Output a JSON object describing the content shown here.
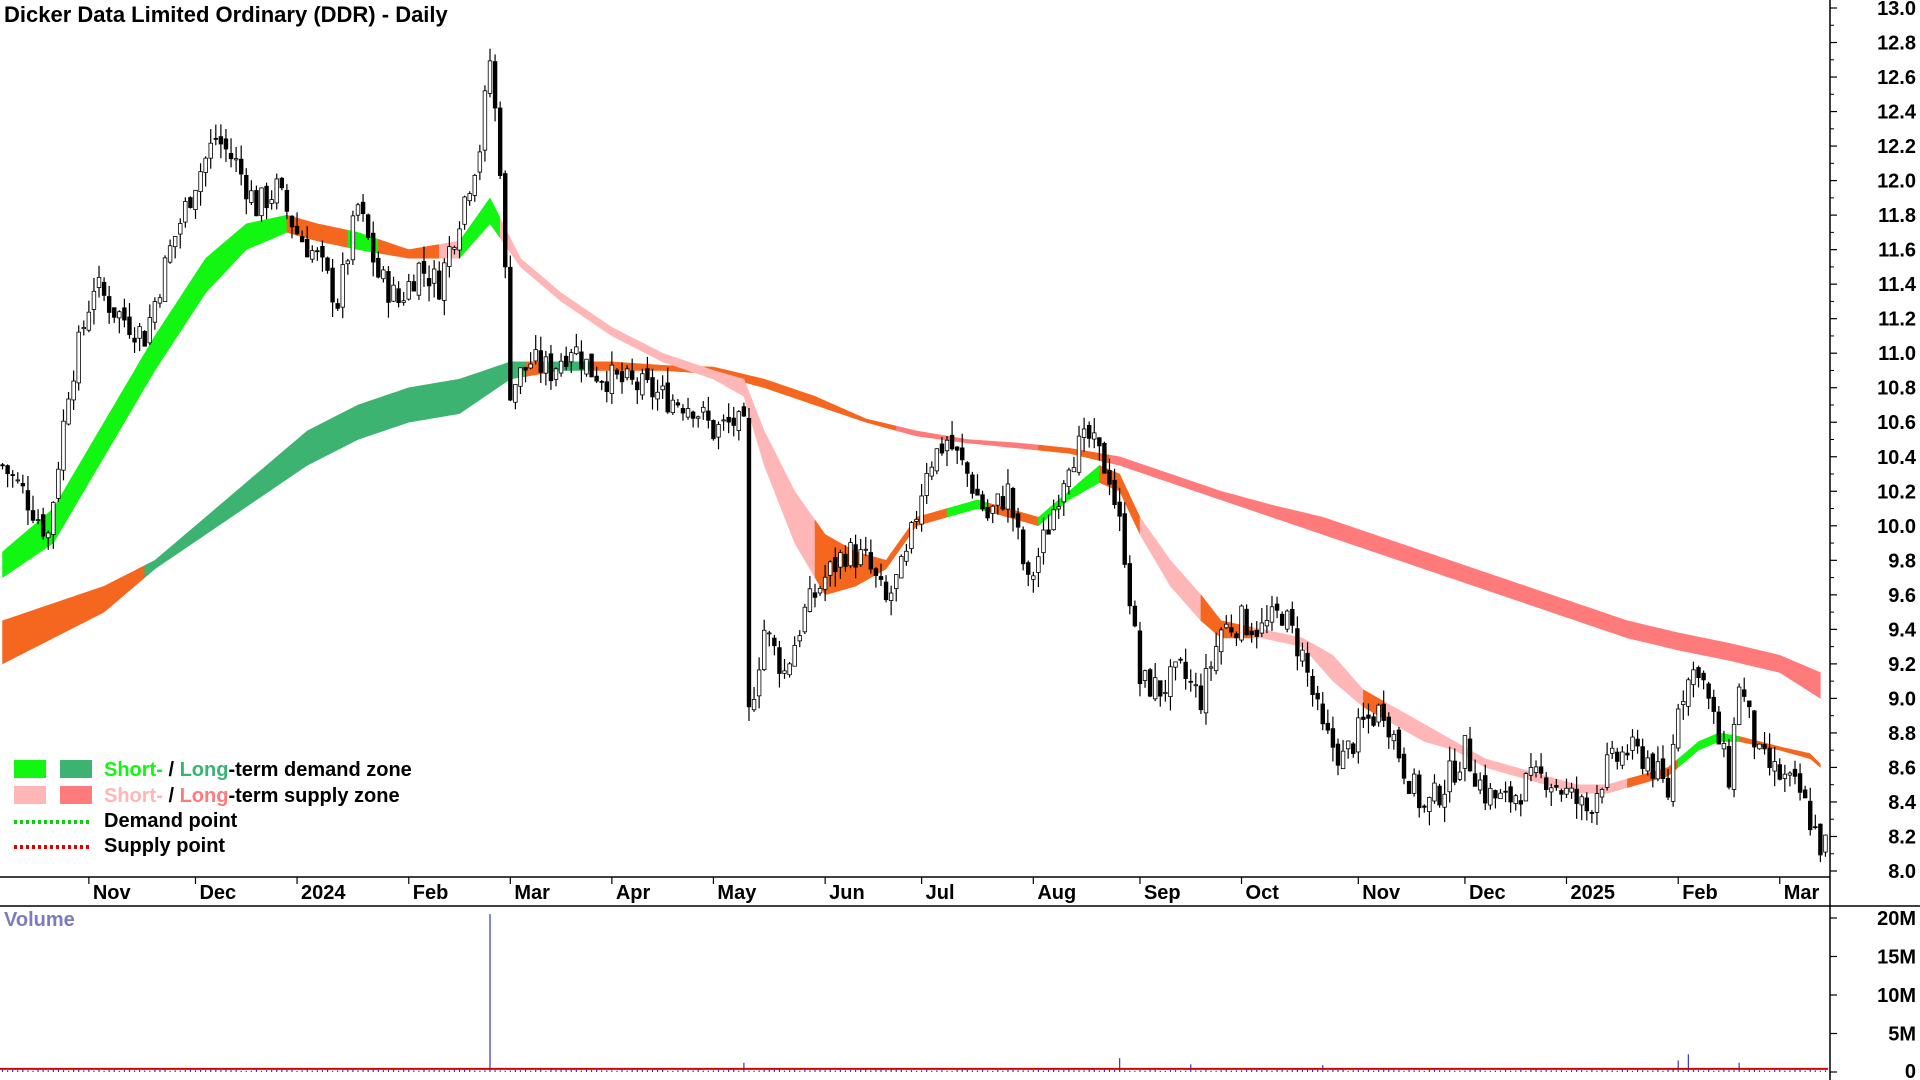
{
  "chart_data": [
    {
      "type": "candlestick",
      "title": "Dicker Data Limited Ordinary (DDR) - Daily",
      "ylim": [
        8.0,
        13.0
      ],
      "yticks": [
        "13.0",
        "12.8",
        "12.6",
        "12.4",
        "12.2",
        "12.0",
        "11.8",
        "11.6",
        "11.4",
        "11.2",
        "11.0",
        "10.8",
        "10.6",
        "10.4",
        "10.2",
        "10.0",
        "9.8",
        "9.6",
        "9.4",
        "9.2",
        "9.0",
        "8.8",
        "8.6",
        "8.4",
        "8.2",
        "8.0"
      ],
      "xticks": [
        "Nov",
        "Dec",
        "2024",
        "Feb",
        "Mar",
        "Apr",
        "May",
        "Jun",
        "Jul",
        "Aug",
        "Sep",
        "Oct",
        "Nov",
        "Dec",
        "2025",
        "Feb",
        "Mar"
      ],
      "xtick_index": [
        17,
        38,
        58,
        80,
        100,
        120,
        140,
        162,
        181,
        203,
        224,
        244,
        267,
        288,
        308,
        330,
        350
      ],
      "n_days": 360,
      "close_anchors": [
        [
          0,
          10.35
        ],
        [
          4,
          10.2
        ],
        [
          9,
          9.95
        ],
        [
          13,
          10.8
        ],
        [
          18,
          11.4
        ],
        [
          22,
          11.25
        ],
        [
          28,
          11.1
        ],
        [
          33,
          11.6
        ],
        [
          38,
          12.0
        ],
        [
          42,
          12.25
        ],
        [
          46,
          12.1
        ],
        [
          50,
          11.85
        ],
        [
          54,
          11.95
        ],
        [
          58,
          11.7
        ],
        [
          62,
          11.55
        ],
        [
          66,
          11.3
        ],
        [
          70,
          11.85
        ],
        [
          74,
          11.45
        ],
        [
          78,
          11.3
        ],
        [
          82,
          11.5
        ],
        [
          86,
          11.4
        ],
        [
          90,
          11.8
        ],
        [
          94,
          12.2
        ],
        [
          96,
          12.7
        ],
        [
          98,
          12.1
        ],
        [
          100,
          10.8
        ],
        [
          104,
          10.95
        ],
        [
          108,
          10.9
        ],
        [
          112,
          11.05
        ],
        [
          116,
          10.9
        ],
        [
          120,
          10.85
        ],
        [
          126,
          10.8
        ],
        [
          130,
          10.75
        ],
        [
          136,
          10.7
        ],
        [
          140,
          10.55
        ],
        [
          144,
          10.6
        ],
        [
          146,
          10.55
        ],
        [
          147,
          8.9
        ],
        [
          150,
          9.4
        ],
        [
          154,
          9.15
        ],
        [
          158,
          9.5
        ],
        [
          162,
          9.7
        ],
        [
          166,
          9.85
        ],
        [
          170,
          9.8
        ],
        [
          174,
          9.55
        ],
        [
          178,
          9.8
        ],
        [
          182,
          10.35
        ],
        [
          186,
          10.5
        ],
        [
          190,
          10.3
        ],
        [
          194,
          10.05
        ],
        [
          198,
          10.2
        ],
        [
          202,
          9.65
        ],
        [
          206,
          10.0
        ],
        [
          210,
          10.4
        ],
        [
          214,
          10.5
        ],
        [
          218,
          10.3
        ],
        [
          221,
          9.85
        ],
        [
          224,
          9.1
        ],
        [
          228,
          9.05
        ],
        [
          232,
          9.15
        ],
        [
          236,
          9.0
        ],
        [
          240,
          9.4
        ],
        [
          244,
          9.45
        ],
        [
          248,
          9.4
        ],
        [
          252,
          9.5
        ],
        [
          256,
          9.25
        ],
        [
          260,
          8.8
        ],
        [
          264,
          8.65
        ],
        [
          268,
          8.85
        ],
        [
          272,
          8.95
        ],
        [
          276,
          8.6
        ],
        [
          280,
          8.35
        ],
        [
          284,
          8.5
        ],
        [
          288,
          8.7
        ],
        [
          292,
          8.45
        ],
        [
          296,
          8.4
        ],
        [
          300,
          8.5
        ],
        [
          304,
          8.55
        ],
        [
          308,
          8.45
        ],
        [
          312,
          8.35
        ],
        [
          316,
          8.6
        ],
        [
          320,
          8.7
        ],
        [
          324,
          8.65
        ],
        [
          328,
          8.45
        ],
        [
          330,
          9.0
        ],
        [
          334,
          9.2
        ],
        [
          338,
          8.75
        ],
        [
          340,
          8.55
        ],
        [
          342,
          9.1
        ],
        [
          346,
          8.65
        ],
        [
          350,
          8.55
        ],
        [
          354,
          8.45
        ],
        [
          358,
          8.15
        ]
      ],
      "short_ribbon": [
        [
          0,
          9.7,
          9.85
        ],
        [
          10,
          9.9,
          10.1
        ],
        [
          20,
          10.4,
          10.6
        ],
        [
          30,
          10.9,
          11.1
        ],
        [
          40,
          11.35,
          11.55
        ],
        [
          48,
          11.6,
          11.75
        ],
        [
          56,
          11.7,
          11.8
        ],
        [
          62,
          11.65,
          11.75
        ],
        [
          70,
          11.6,
          11.7
        ],
        [
          80,
          11.55,
          11.6
        ],
        [
          90,
          11.55,
          11.65
        ],
        [
          96,
          11.75,
          11.9
        ],
        [
          102,
          11.5,
          11.55
        ],
        [
          110,
          11.3,
          11.35
        ],
        [
          120,
          11.1,
          11.15
        ],
        [
          130,
          10.95,
          11.0
        ],
        [
          140,
          10.85,
          10.9
        ],
        [
          146,
          10.75,
          10.85
        ],
        [
          150,
          10.35,
          10.55
        ],
        [
          156,
          9.9,
          10.2
        ],
        [
          162,
          9.6,
          9.95
        ],
        [
          168,
          9.65,
          9.85
        ],
        [
          174,
          9.75,
          9.8
        ],
        [
          180,
          10.0,
          10.05
        ],
        [
          186,
          10.05,
          10.1
        ],
        [
          192,
          10.1,
          10.15
        ],
        [
          198,
          10.05,
          10.1
        ],
        [
          204,
          10.0,
          10.05
        ],
        [
          210,
          10.15,
          10.2
        ],
        [
          216,
          10.25,
          10.35
        ],
        [
          220,
          10.2,
          10.3
        ],
        [
          224,
          9.95,
          10.05
        ],
        [
          230,
          9.65,
          9.8
        ],
        [
          236,
          9.45,
          9.6
        ],
        [
          240,
          9.35,
          9.45
        ],
        [
          248,
          9.35,
          9.4
        ],
        [
          256,
          9.3,
          9.35
        ],
        [
          262,
          9.1,
          9.25
        ],
        [
          268,
          8.95,
          9.05
        ],
        [
          274,
          8.85,
          8.95
        ],
        [
          280,
          8.75,
          8.85
        ],
        [
          286,
          8.7,
          8.75
        ],
        [
          292,
          8.6,
          8.65
        ],
        [
          298,
          8.55,
          8.6
        ],
        [
          304,
          8.5,
          8.55
        ],
        [
          310,
          8.45,
          8.5
        ],
        [
          316,
          8.45,
          8.5
        ],
        [
          322,
          8.5,
          8.55
        ],
        [
          328,
          8.55,
          8.6
        ],
        [
          334,
          8.7,
          8.75
        ],
        [
          338,
          8.75,
          8.8
        ],
        [
          342,
          8.75,
          8.78
        ],
        [
          350,
          8.7,
          8.72
        ],
        [
          356,
          8.65,
          8.68
        ],
        [
          358,
          8.6,
          8.62
        ]
      ],
      "short_colors": [
        [
          0,
          56,
          "#11f711"
        ],
        [
          56,
          68,
          "#f5661f"
        ],
        [
          68,
          74,
          "#11f711"
        ],
        [
          74,
          86,
          "#f5661f"
        ],
        [
          86,
          90,
          "#ffb6b6"
        ],
        [
          90,
          98,
          "#11f711"
        ],
        [
          98,
          146,
          "#ffb6b6"
        ],
        [
          146,
          160,
          "#ffb6b6"
        ],
        [
          160,
          176,
          "#f5661f"
        ],
        [
          176,
          186,
          "#f5661f"
        ],
        [
          186,
          194,
          "#11f711"
        ],
        [
          194,
          204,
          "#f5661f"
        ],
        [
          204,
          216,
          "#11f711"
        ],
        [
          216,
          224,
          "#f5661f"
        ],
        [
          224,
          236,
          "#ffb6b6"
        ],
        [
          236,
          246,
          "#f5661f"
        ],
        [
          246,
          268,
          "#ffb6b6"
        ],
        [
          268,
          272,
          "#f5661f"
        ],
        [
          272,
          286,
          "#ffb6b6"
        ],
        [
          286,
          300,
          "#ffb6b6"
        ],
        [
          300,
          320,
          "#ffb6b6"
        ],
        [
          320,
          330,
          "#f5661f"
        ],
        [
          330,
          342,
          "#11f711"
        ],
        [
          342,
          358,
          "#f5661f"
        ]
      ],
      "long_ribbon": [
        [
          0,
          9.2,
          9.45
        ],
        [
          10,
          9.35,
          9.55
        ],
        [
          20,
          9.5,
          9.65
        ],
        [
          30,
          9.75,
          9.8
        ],
        [
          40,
          9.95,
          10.05
        ],
        [
          50,
          10.15,
          10.3
        ],
        [
          60,
          10.35,
          10.55
        ],
        [
          70,
          10.5,
          10.7
        ],
        [
          80,
          10.6,
          10.8
        ],
        [
          90,
          10.65,
          10.85
        ],
        [
          100,
          10.85,
          10.95
        ],
        [
          110,
          10.9,
          10.95
        ],
        [
          120,
          10.9,
          10.95
        ],
        [
          130,
          10.9,
          10.93
        ],
        [
          140,
          10.88,
          10.92
        ],
        [
          150,
          10.8,
          10.85
        ],
        [
          160,
          10.7,
          10.75
        ],
        [
          170,
          10.6,
          10.62
        ],
        [
          180,
          10.52,
          10.55
        ],
        [
          190,
          10.48,
          10.5
        ],
        [
          200,
          10.45,
          10.48
        ],
        [
          210,
          10.42,
          10.45
        ],
        [
          220,
          10.35,
          10.4
        ],
        [
          230,
          10.25,
          10.3
        ],
        [
          240,
          10.15,
          10.2
        ],
        [
          250,
          10.05,
          10.12
        ],
        [
          260,
          9.95,
          10.05
        ],
        [
          270,
          9.85,
          9.95
        ],
        [
          280,
          9.75,
          9.85
        ],
        [
          290,
          9.65,
          9.75
        ],
        [
          300,
          9.55,
          9.65
        ],
        [
          310,
          9.45,
          9.55
        ],
        [
          320,
          9.35,
          9.45
        ],
        [
          330,
          9.28,
          9.38
        ],
        [
          340,
          9.22,
          9.32
        ],
        [
          350,
          9.15,
          9.25
        ],
        [
          358,
          9.0,
          9.15
        ]
      ],
      "long_colors": [
        [
          0,
          28,
          "#f5661f"
        ],
        [
          28,
          98,
          "#3cb371"
        ],
        [
          98,
          103,
          "#3cb371"
        ],
        [
          103,
          107,
          "#f5661f"
        ],
        [
          107,
          116,
          "#3cb371"
        ],
        [
          116,
          146,
          "#f5661f"
        ],
        [
          146,
          176,
          "#f5661f"
        ],
        [
          176,
          204,
          "#ff7b7b"
        ],
        [
          204,
          218,
          "#f5661f"
        ],
        [
          218,
          358,
          "#ff7b7b"
        ]
      ],
      "legend": [
        {
          "swatches": [
            "#11f711",
            "#3cb371"
          ],
          "parts": [
            {
              "text": "Short-",
              "color": "#11f711"
            },
            {
              "text": " / ",
              "color": "#000000"
            },
            {
              "text": "Long",
              "color": "#3cb371"
            },
            {
              "text": "-term demand zone",
              "color": "#000000"
            }
          ]
        },
        {
          "swatches": [
            "#ffb6b6",
            "#ff7b7b"
          ],
          "parts": [
            {
              "text": "Short-",
              "color": "#ffb6b6"
            },
            {
              "text": " / ",
              "color": "#000000"
            },
            {
              "text": "Long",
              "color": "#ff7b7b"
            },
            {
              "text": "-term supply zone",
              "color": "#000000"
            }
          ]
        },
        {
          "line_color": "#11cc11",
          "parts": [
            {
              "text": "Demand point",
              "color": "#000000"
            }
          ]
        },
        {
          "line_color": "#dd0000",
          "parts": [
            {
              "text": "Supply point",
              "color": "#000000"
            }
          ]
        }
      ]
    },
    {
      "type": "bar",
      "title": "Volume",
      "ylim": [
        0,
        20000000
      ],
      "yticks": [
        "20M",
        "15M",
        "10M",
        "5M",
        "0"
      ],
      "bar_color": "#3333cc",
      "avg_line_color": "#dd0000",
      "typical_volume": 250000,
      "spikes": [
        [
          96,
          20500000
        ],
        [
          146,
          1200000
        ],
        [
          220,
          1800000
        ],
        [
          234,
          1000000
        ],
        [
          260,
          900000
        ],
        [
          330,
          1500000
        ],
        [
          332,
          2300000
        ],
        [
          342,
          1200000
        ]
      ]
    }
  ]
}
